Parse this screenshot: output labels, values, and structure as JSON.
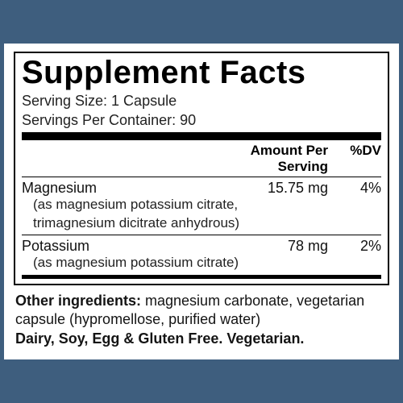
{
  "title": "Supplement Facts",
  "serving_size_label": "Serving Size: 1 Capsule",
  "servings_per_container_label": "Servings Per Container: 90",
  "header": {
    "amount": "Amount Per Serving",
    "dv": "%DV"
  },
  "rows": [
    {
      "name": "Magnesium",
      "sub1": "(as magnesium potassium citrate,",
      "sub2": "trimagnesium dicitrate anhydrous)",
      "amount": "15.75 mg",
      "dv": "4%"
    },
    {
      "name": "Potassium",
      "sub1": "(as magnesium potassium citrate)",
      "sub2": "",
      "amount": "78 mg",
      "dv": "2%"
    }
  ],
  "footer": {
    "other_label": "Other ingredients:",
    "other_text": " magnesium carbonate, vegetarian capsule (hypromellose, purified water)",
    "allergen": "Dairy, Soy, Egg & Gluten Free. Vegetarian."
  },
  "colors": {
    "background": "#3e5e7e",
    "panel": "#ffffff",
    "text": "#000000"
  }
}
